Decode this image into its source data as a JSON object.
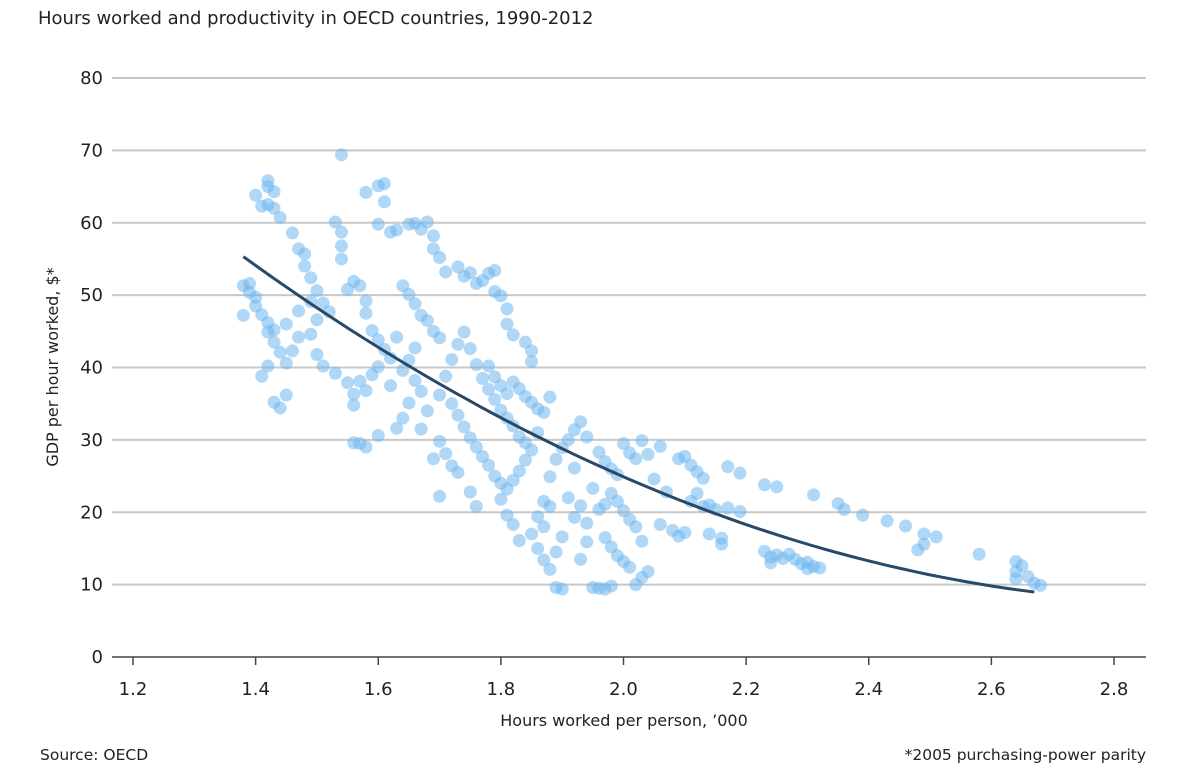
{
  "chart_data": {
    "type": "scatter",
    "title": "Hours worked and productivity in OECD countries, 1990-2012",
    "xlabel": "Hours worked per person, ’000",
    "ylabel": "GDP per hour worked, $*",
    "xlim": [
      1.2,
      2.8
    ],
    "ylim": [
      0,
      80
    ],
    "xticks": [
      "1.2",
      "1.4",
      "1.6",
      "1.8",
      "2.0",
      "2.2",
      "2.4",
      "2.6",
      "2.8"
    ],
    "yticks": [
      "0",
      "10",
      "20",
      "30",
      "40",
      "50",
      "60",
      "70",
      "80"
    ],
    "grid": "horizontal",
    "source": "Source: OECD",
    "note": "*2005 purchasing-power parity",
    "colors": {
      "points": "#6fb6ee",
      "trend": "#284a68",
      "grid": "#c8c8c8"
    },
    "trendline": {
      "type": "quadratic",
      "x_range": [
        1.38,
        2.67
      ],
      "coefficients": {
        "a": 177.1,
        "b": -115.3,
        "c": 19.6
      }
    },
    "points": [
      [
        1.42,
        65.8
      ],
      [
        1.42,
        65
      ],
      [
        1.43,
        64.3
      ],
      [
        1.4,
        63.8
      ],
      [
        1.41,
        62.3
      ],
      [
        1.42,
        62.5
      ],
      [
        1.43,
        62
      ],
      [
        1.44,
        60.7
      ],
      [
        1.54,
        69.4
      ],
      [
        1.53,
        60.1
      ],
      [
        1.54,
        58.7
      ],
      [
        1.54,
        56.8
      ],
      [
        1.54,
        55
      ],
      [
        1.58,
        64.2
      ],
      [
        1.6,
        65.1
      ],
      [
        1.61,
        65.4
      ],
      [
        1.61,
        62.9
      ],
      [
        1.6,
        59.8
      ],
      [
        1.62,
        58.7
      ],
      [
        1.63,
        59
      ],
      [
        1.65,
        59.8
      ],
      [
        1.66,
        59.9
      ],
      [
        1.67,
        59.1
      ],
      [
        1.68,
        60.1
      ],
      [
        1.69,
        58.2
      ],
      [
        1.69,
        56.4
      ],
      [
        1.7,
        55.2
      ],
      [
        1.71,
        53.2
      ],
      [
        1.73,
        53.9
      ],
      [
        1.75,
        53.1
      ],
      [
        1.74,
        52.6
      ],
      [
        1.76,
        51.6
      ],
      [
        1.77,
        52
      ],
      [
        1.78,
        53
      ],
      [
        1.79,
        53.4
      ],
      [
        1.79,
        50.5
      ],
      [
        1.8,
        49.9
      ],
      [
        1.81,
        48.1
      ],
      [
        1.81,
        46
      ],
      [
        1.82,
        44.5
      ],
      [
        1.84,
        43.5
      ],
      [
        1.85,
        42.3
      ],
      [
        1.85,
        40.8
      ],
      [
        1.46,
        58.6
      ],
      [
        1.47,
        56.4
      ],
      [
        1.48,
        55.7
      ],
      [
        1.48,
        54
      ],
      [
        1.49,
        52.4
      ],
      [
        1.5,
        50.6
      ],
      [
        1.51,
        48.9
      ],
      [
        1.52,
        47.7
      ],
      [
        1.38,
        51.3
      ],
      [
        1.39,
        51.6
      ],
      [
        1.39,
        50.4
      ],
      [
        1.4,
        49.7
      ],
      [
        1.38,
        47.2
      ],
      [
        1.4,
        48.5
      ],
      [
        1.41,
        47.3
      ],
      [
        1.42,
        46.2
      ],
      [
        1.43,
        45.2
      ],
      [
        1.42,
        44.9
      ],
      [
        1.43,
        43.5
      ],
      [
        1.44,
        42.1
      ],
      [
        1.45,
        40.6
      ],
      [
        1.42,
        40.2
      ],
      [
        1.41,
        38.8
      ],
      [
        1.43,
        35.2
      ],
      [
        1.44,
        34.4
      ],
      [
        1.45,
        36.2
      ],
      [
        1.46,
        42.3
      ],
      [
        1.47,
        44.2
      ],
      [
        1.45,
        46.0
      ],
      [
        1.47,
        47.8
      ],
      [
        1.49,
        49.1
      ],
      [
        1.5,
        46.6
      ],
      [
        1.49,
        44.6
      ],
      [
        1.5,
        41.8
      ],
      [
        1.51,
        40.2
      ],
      [
        1.53,
        39.2
      ],
      [
        1.55,
        37.9
      ],
      [
        1.56,
        36.3
      ],
      [
        1.56,
        34.8
      ],
      [
        1.55,
        50.8
      ],
      [
        1.56,
        51.9
      ],
      [
        1.57,
        51.3
      ],
      [
        1.58,
        49.2
      ],
      [
        1.58,
        47.5
      ],
      [
        1.59,
        45.1
      ],
      [
        1.6,
        43.8
      ],
      [
        1.61,
        42.5
      ],
      [
        1.62,
        41.3
      ],
      [
        1.6,
        40.1
      ],
      [
        1.59,
        39.0
      ],
      [
        1.57,
        38.1
      ],
      [
        1.58,
        36.8
      ],
      [
        1.62,
        37.5
      ],
      [
        1.63,
        44.2
      ],
      [
        1.64,
        51.3
      ],
      [
        1.65,
        50.1
      ],
      [
        1.66,
        48.8
      ],
      [
        1.67,
        47.2
      ],
      [
        1.68,
        46.5
      ],
      [
        1.69,
        45.0
      ],
      [
        1.7,
        44.1
      ],
      [
        1.66,
        42.7
      ],
      [
        1.65,
        41.0
      ],
      [
        1.64,
        39.6
      ],
      [
        1.66,
        38.2
      ],
      [
        1.67,
        36.7
      ],
      [
        1.65,
        35.1
      ],
      [
        1.64,
        33.0
      ],
      [
        1.63,
        31.6
      ],
      [
        1.67,
        31.5
      ],
      [
        1.68,
        34.0
      ],
      [
        1.7,
        36.2
      ],
      [
        1.71,
        38.8
      ],
      [
        1.72,
        41.1
      ],
      [
        1.73,
        43.2
      ],
      [
        1.74,
        44.9
      ],
      [
        1.75,
        42.6
      ],
      [
        1.76,
        40.4
      ],
      [
        1.77,
        38.5
      ],
      [
        1.78,
        37.0
      ],
      [
        1.79,
        35.6
      ],
      [
        1.8,
        34.1
      ],
      [
        1.81,
        33.0
      ],
      [
        1.82,
        31.9
      ],
      [
        1.83,
        30.4
      ],
      [
        1.84,
        29.6
      ],
      [
        1.72,
        35.0
      ],
      [
        1.73,
        33.4
      ],
      [
        1.74,
        31.8
      ],
      [
        1.75,
        30.3
      ],
      [
        1.76,
        29.0
      ],
      [
        1.77,
        27.7
      ],
      [
        1.78,
        26.5
      ],
      [
        1.79,
        25.0
      ],
      [
        1.8,
        24.0
      ],
      [
        1.7,
        29.8
      ],
      [
        1.71,
        28.1
      ],
      [
        1.72,
        26.4
      ],
      [
        1.73,
        25.5
      ],
      [
        1.69,
        27.4
      ],
      [
        1.7,
        22.2
      ],
      [
        1.75,
        22.8
      ],
      [
        1.76,
        20.8
      ],
      [
        1.57,
        29.5
      ],
      [
        1.58,
        29.0
      ],
      [
        1.6,
        30.6
      ],
      [
        1.56,
        29.6
      ],
      [
        1.78,
        40.2
      ],
      [
        1.79,
        38.7
      ],
      [
        1.8,
        37.5
      ],
      [
        1.81,
        36.4
      ],
      [
        1.82,
        38.0
      ],
      [
        1.83,
        37.1
      ],
      [
        1.84,
        36.0
      ],
      [
        1.85,
        35.2
      ],
      [
        1.86,
        34.3
      ],
      [
        1.87,
        33.8
      ],
      [
        1.88,
        35.9
      ],
      [
        1.86,
        31.0
      ],
      [
        1.85,
        28.6
      ],
      [
        1.84,
        27.2
      ],
      [
        1.83,
        25.7
      ],
      [
        1.82,
        24.4
      ],
      [
        1.81,
        23.2
      ],
      [
        1.8,
        21.8
      ],
      [
        1.81,
        19.6
      ],
      [
        1.82,
        18.3
      ],
      [
        1.83,
        16.1
      ],
      [
        1.85,
        17.0
      ],
      [
        1.86,
        19.4
      ],
      [
        1.87,
        21.5
      ],
      [
        1.88,
        20.8
      ],
      [
        1.87,
        18.0
      ],
      [
        1.86,
        15.0
      ],
      [
        1.87,
        13.4
      ],
      [
        1.88,
        12.1
      ],
      [
        1.89,
        14.5
      ],
      [
        1.9,
        16.6
      ],
      [
        1.89,
        9.6
      ],
      [
        1.9,
        9.4
      ],
      [
        1.88,
        24.9
      ],
      [
        1.89,
        27.3
      ],
      [
        1.9,
        28.9
      ],
      [
        1.91,
        30.0
      ],
      [
        1.92,
        31.4
      ],
      [
        1.93,
        32.5
      ],
      [
        1.94,
        30.4
      ],
      [
        1.92,
        26.1
      ],
      [
        1.91,
        22.0
      ],
      [
        1.92,
        19.3
      ],
      [
        1.93,
        20.9
      ],
      [
        1.94,
        18.5
      ],
      [
        1.95,
        23.3
      ],
      [
        1.96,
        20.4
      ],
      [
        1.97,
        21.1
      ],
      [
        1.98,
        22.6
      ],
      [
        1.99,
        21.5
      ],
      [
        2.0,
        20.2
      ],
      [
        2.01,
        19.0
      ],
      [
        2.02,
        18.0
      ],
      [
        1.97,
        16.5
      ],
      [
        1.98,
        15.2
      ],
      [
        1.99,
        14.0
      ],
      [
        2.0,
        13.2
      ],
      [
        2.01,
        12.4
      ],
      [
        1.95,
        9.6
      ],
      [
        1.96,
        9.5
      ],
      [
        1.97,
        9.4
      ],
      [
        1.98,
        9.8
      ],
      [
        1.93,
        13.5
      ],
      [
        1.94,
        15.9
      ],
      [
        1.96,
        28.3
      ],
      [
        1.97,
        27.0
      ],
      [
        1.98,
        26.0
      ],
      [
        1.99,
        25.2
      ],
      [
        2.0,
        29.5
      ],
      [
        2.01,
        28.2
      ],
      [
        2.02,
        27.4
      ],
      [
        2.03,
        29.9
      ],
      [
        2.04,
        28.0
      ],
      [
        2.05,
        24.6
      ],
      [
        2.03,
        16.0
      ],
      [
        2.04,
        11.8
      ],
      [
        2.02,
        10.0
      ],
      [
        2.03,
        11.0
      ],
      [
        2.06,
        18.3
      ],
      [
        2.07,
        22.8
      ],
      [
        2.08,
        17.5
      ],
      [
        2.09,
        16.7
      ],
      [
        2.1,
        17.2
      ],
      [
        2.06,
        29.1
      ],
      [
        2.09,
        27.4
      ],
      [
        2.1,
        27.7
      ],
      [
        2.11,
        26.5
      ],
      [
        2.12,
        25.6
      ],
      [
        2.13,
        24.7
      ],
      [
        2.11,
        21.5
      ],
      [
        2.12,
        22.6
      ],
      [
        2.13,
        20.8
      ],
      [
        2.14,
        21.0
      ],
      [
        2.15,
        20.4
      ],
      [
        2.14,
        17.0
      ],
      [
        2.16,
        15.6
      ],
      [
        2.16,
        16.4
      ],
      [
        2.17,
        26.3
      ],
      [
        2.17,
        20.6
      ],
      [
        2.19,
        20.1
      ],
      [
        2.19,
        25.4
      ],
      [
        2.23,
        14.6
      ],
      [
        2.24,
        13.8
      ],
      [
        2.24,
        13.0
      ],
      [
        2.25,
        14.1
      ],
      [
        2.26,
        13.6
      ],
      [
        2.27,
        14.2
      ],
      [
        2.28,
        13.5
      ],
      [
        2.29,
        12.9
      ],
      [
        2.3,
        13.1
      ],
      [
        2.31,
        12.5
      ],
      [
        2.32,
        12.3
      ],
      [
        2.3,
        12.2
      ],
      [
        2.23,
        23.8
      ],
      [
        2.25,
        23.5
      ],
      [
        2.31,
        22.4
      ],
      [
        2.35,
        21.2
      ],
      [
        2.36,
        20.4
      ],
      [
        2.39,
        19.6
      ],
      [
        2.43,
        18.8
      ],
      [
        2.46,
        18.1
      ],
      [
        2.49,
        17.0
      ],
      [
        2.51,
        16.6
      ],
      [
        2.49,
        15.6
      ],
      [
        2.48,
        14.8
      ],
      [
        2.58,
        14.2
      ],
      [
        2.64,
        13.2
      ],
      [
        2.65,
        12.6
      ],
      [
        2.64,
        11.8
      ],
      [
        2.64,
        10.8
      ],
      [
        2.66,
        11.1
      ],
      [
        2.67,
        10.2
      ],
      [
        2.68,
        9.9
      ]
    ]
  }
}
